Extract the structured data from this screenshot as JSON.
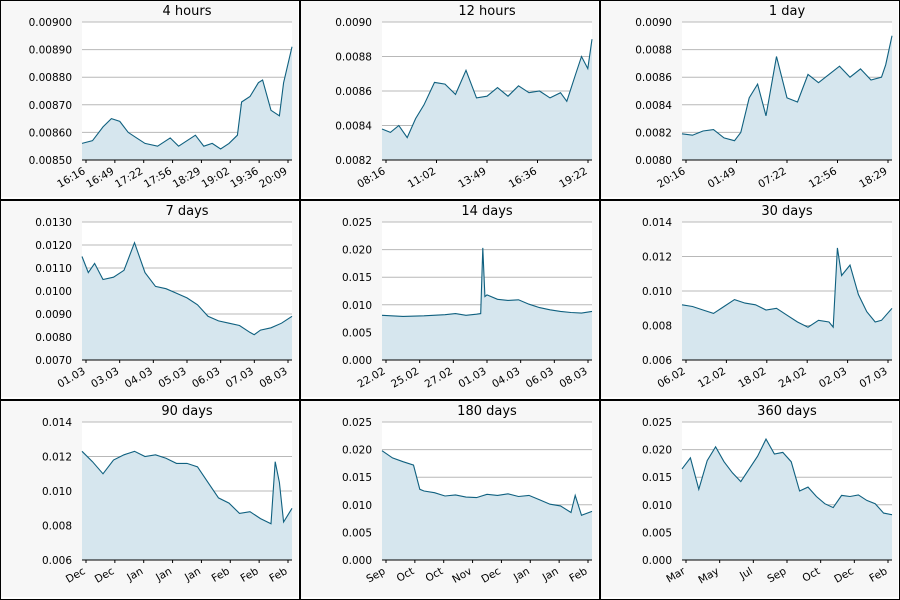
{
  "colors": {
    "line": "#0f607f",
    "fill": "#d6e6ee",
    "grid": "#b8b8b8",
    "panel_bg": "#f7f7f7"
  },
  "chart_data": [
    {
      "type": "area",
      "title": "4 hours",
      "ylim": [
        0.0085,
        0.009
      ],
      "yticks": [
        "0.00900",
        "0.00890",
        "0.00880",
        "0.00870",
        "0.00860",
        "0.00850"
      ],
      "xticks": [
        "16:16",
        "16:49",
        "17:22",
        "17:56",
        "18:29",
        "19:02",
        "19:36",
        "20:09"
      ],
      "x": [
        0,
        0.05,
        0.1,
        0.14,
        0.18,
        0.22,
        0.26,
        0.3,
        0.36,
        0.42,
        0.46,
        0.5,
        0.54,
        0.58,
        0.62,
        0.66,
        0.7,
        0.74,
        0.76,
        0.8,
        0.84,
        0.86,
        0.9,
        0.94,
        0.96,
        1
      ],
      "values": [
        0.00856,
        0.00857,
        0.00862,
        0.00865,
        0.00864,
        0.0086,
        0.00858,
        0.00856,
        0.00855,
        0.00858,
        0.00855,
        0.00857,
        0.00859,
        0.00855,
        0.00856,
        0.00854,
        0.00856,
        0.00859,
        0.00871,
        0.00873,
        0.00878,
        0.00879,
        0.00868,
        0.00866,
        0.00878,
        0.00891
      ]
    },
    {
      "type": "area",
      "title": "12 hours",
      "ylim": [
        0.0082,
        0.009
      ],
      "yticks": [
        "0.0090",
        "0.0088",
        "0.0086",
        "0.0084",
        "0.0082"
      ],
      "xticks": [
        "08:16",
        "11:02",
        "13:49",
        "16:36",
        "19:22"
      ],
      "x": [
        0,
        0.04,
        0.08,
        0.12,
        0.16,
        0.2,
        0.25,
        0.3,
        0.35,
        0.4,
        0.45,
        0.5,
        0.55,
        0.6,
        0.65,
        0.7,
        0.75,
        0.8,
        0.85,
        0.88,
        0.92,
        0.95,
        0.98,
        1
      ],
      "values": [
        0.00838,
        0.00836,
        0.0084,
        0.00833,
        0.00844,
        0.00852,
        0.00865,
        0.00864,
        0.00858,
        0.00872,
        0.00856,
        0.00857,
        0.00862,
        0.00857,
        0.00863,
        0.00859,
        0.0086,
        0.00856,
        0.00859,
        0.00854,
        0.00869,
        0.0088,
        0.00873,
        0.0089
      ]
    },
    {
      "type": "area",
      "title": "1 day",
      "ylim": [
        0.008,
        0.009
      ],
      "yticks": [
        "0.0090",
        "0.0088",
        "0.0086",
        "0.0084",
        "0.0082",
        "0.0080"
      ],
      "xticks": [
        "20:16",
        "01:49",
        "07:22",
        "12:56",
        "18:29"
      ],
      "x": [
        0,
        0.05,
        0.1,
        0.15,
        0.2,
        0.25,
        0.28,
        0.32,
        0.36,
        0.4,
        0.45,
        0.5,
        0.55,
        0.6,
        0.65,
        0.7,
        0.75,
        0.8,
        0.85,
        0.9,
        0.95,
        0.97,
        1
      ],
      "values": [
        0.00819,
        0.00818,
        0.00821,
        0.00822,
        0.00816,
        0.00814,
        0.0082,
        0.00845,
        0.00855,
        0.00832,
        0.00875,
        0.00845,
        0.00842,
        0.00862,
        0.00856,
        0.00862,
        0.00868,
        0.0086,
        0.00866,
        0.00858,
        0.0086,
        0.00869,
        0.0089
      ]
    },
    {
      "type": "area",
      "title": "7 days",
      "ylim": [
        0.007,
        0.013
      ],
      "yticks": [
        "0.0130",
        "0.0120",
        "0.0110",
        "0.0100",
        "0.0090",
        "0.0080",
        "0.0070"
      ],
      "xticks": [
        "01.03",
        "03.03",
        "04.03",
        "05.03",
        "06.03",
        "07.03",
        "08.03"
      ],
      "x": [
        0,
        0.03,
        0.06,
        0.1,
        0.15,
        0.2,
        0.25,
        0.3,
        0.35,
        0.4,
        0.45,
        0.5,
        0.55,
        0.6,
        0.65,
        0.7,
        0.75,
        0.8,
        0.82,
        0.85,
        0.9,
        0.95,
        1
      ],
      "values": [
        0.0115,
        0.0108,
        0.0112,
        0.0105,
        0.0106,
        0.0109,
        0.0121,
        0.0108,
        0.0102,
        0.0101,
        0.0099,
        0.0097,
        0.0094,
        0.0089,
        0.0087,
        0.0086,
        0.0085,
        0.0082,
        0.0081,
        0.0083,
        0.0084,
        0.0086,
        0.0089
      ]
    },
    {
      "type": "area",
      "title": "14 days",
      "ylim": [
        0,
        0.025
      ],
      "yticks": [
        "0.025",
        "0.020",
        "0.015",
        "0.010",
        "0.005",
        "0.000"
      ],
      "xticks": [
        "22.02",
        "25.02",
        "27.02",
        "01.03",
        "04.03",
        "06.03",
        "08.03"
      ],
      "x": [
        0,
        0.1,
        0.2,
        0.3,
        0.35,
        0.4,
        0.45,
        0.47,
        0.48,
        0.49,
        0.5,
        0.55,
        0.6,
        0.65,
        0.7,
        0.75,
        0.8,
        0.85,
        0.9,
        0.95,
        1
      ],
      "values": [
        0.0081,
        0.0079,
        0.008,
        0.0082,
        0.0084,
        0.0081,
        0.0083,
        0.0084,
        0.0203,
        0.0115,
        0.0118,
        0.011,
        0.0108,
        0.0109,
        0.0101,
        0.0095,
        0.0091,
        0.0088,
        0.0086,
        0.0085,
        0.0088
      ]
    },
    {
      "type": "area",
      "title": "30 days",
      "ylim": [
        0.006,
        0.014
      ],
      "yticks": [
        "0.014",
        "0.012",
        "0.010",
        "0.008",
        "0.006"
      ],
      "xticks": [
        "06.02",
        "12.02",
        "18.02",
        "24.02",
        "02.03",
        "07.03"
      ],
      "x": [
        0,
        0.05,
        0.1,
        0.15,
        0.2,
        0.25,
        0.3,
        0.35,
        0.4,
        0.45,
        0.5,
        0.55,
        0.6,
        0.65,
        0.7,
        0.72,
        0.74,
        0.76,
        0.8,
        0.84,
        0.88,
        0.92,
        0.95,
        1
      ],
      "values": [
        0.0092,
        0.0091,
        0.0089,
        0.0087,
        0.0091,
        0.0095,
        0.0093,
        0.0092,
        0.0089,
        0.009,
        0.0086,
        0.0082,
        0.0079,
        0.0083,
        0.0082,
        0.0079,
        0.0125,
        0.0109,
        0.0115,
        0.0098,
        0.0088,
        0.0082,
        0.0083,
        0.009
      ]
    },
    {
      "type": "area",
      "title": "90 days",
      "ylim": [
        0.006,
        0.014
      ],
      "yticks": [
        "0.014",
        "0.012",
        "0.010",
        "0.008",
        "0.006"
      ],
      "xticks": [
        "Dec",
        "Dec",
        "Jan",
        "Jan",
        "Jan",
        "Feb",
        "Feb",
        "Feb"
      ],
      "x": [
        0,
        0.05,
        0.1,
        0.15,
        0.2,
        0.25,
        0.3,
        0.35,
        0.4,
        0.45,
        0.5,
        0.55,
        0.6,
        0.65,
        0.7,
        0.75,
        0.8,
        0.85,
        0.9,
        0.92,
        0.94,
        0.96,
        0.98,
        1
      ],
      "values": [
        0.0123,
        0.0117,
        0.011,
        0.0118,
        0.0121,
        0.0123,
        0.012,
        0.0121,
        0.0119,
        0.0116,
        0.0116,
        0.0114,
        0.0105,
        0.0096,
        0.0093,
        0.0087,
        0.0088,
        0.0084,
        0.0081,
        0.0117,
        0.0105,
        0.0082,
        0.0086,
        0.009
      ]
    },
    {
      "type": "area",
      "title": "180 days",
      "ylim": [
        0,
        0.025
      ],
      "yticks": [
        "0.025",
        "0.020",
        "0.015",
        "0.010",
        "0.005",
        "0.000"
      ],
      "xticks": [
        "Sep",
        "Oct",
        "Oct",
        "Nov",
        "Dec",
        "Jan",
        "Jan",
        "Feb"
      ],
      "x": [
        0,
        0.05,
        0.1,
        0.15,
        0.18,
        0.2,
        0.25,
        0.3,
        0.35,
        0.4,
        0.45,
        0.5,
        0.55,
        0.6,
        0.65,
        0.7,
        0.75,
        0.8,
        0.85,
        0.9,
        0.92,
        0.95,
        1
      ],
      "values": [
        0.0198,
        0.0185,
        0.0178,
        0.0172,
        0.0128,
        0.0125,
        0.0122,
        0.0116,
        0.0118,
        0.0114,
        0.0113,
        0.0119,
        0.0117,
        0.012,
        0.0115,
        0.0117,
        0.0109,
        0.0101,
        0.0098,
        0.0086,
        0.0117,
        0.0081,
        0.0088
      ]
    },
    {
      "type": "area",
      "title": "360 days",
      "ylim": [
        0,
        0.025
      ],
      "yticks": [
        "0.025",
        "0.020",
        "0.015",
        "0.010",
        "0.005",
        "0.000"
      ],
      "xticks": [
        "Mar",
        "May",
        "Jul",
        "Sep",
        "Oct",
        "Dec",
        "Feb"
      ],
      "x": [
        0,
        0.04,
        0.08,
        0.12,
        0.16,
        0.2,
        0.24,
        0.28,
        0.32,
        0.36,
        0.4,
        0.44,
        0.48,
        0.52,
        0.56,
        0.6,
        0.64,
        0.68,
        0.72,
        0.76,
        0.8,
        0.84,
        0.88,
        0.92,
        0.96,
        1
      ],
      "values": [
        0.0165,
        0.0185,
        0.0128,
        0.018,
        0.0205,
        0.0178,
        0.0158,
        0.0142,
        0.0165,
        0.0188,
        0.0219,
        0.0192,
        0.0195,
        0.0178,
        0.0125,
        0.0132,
        0.0115,
        0.0102,
        0.0095,
        0.0117,
        0.0115,
        0.0118,
        0.0108,
        0.0102,
        0.0085,
        0.0082
      ]
    }
  ]
}
